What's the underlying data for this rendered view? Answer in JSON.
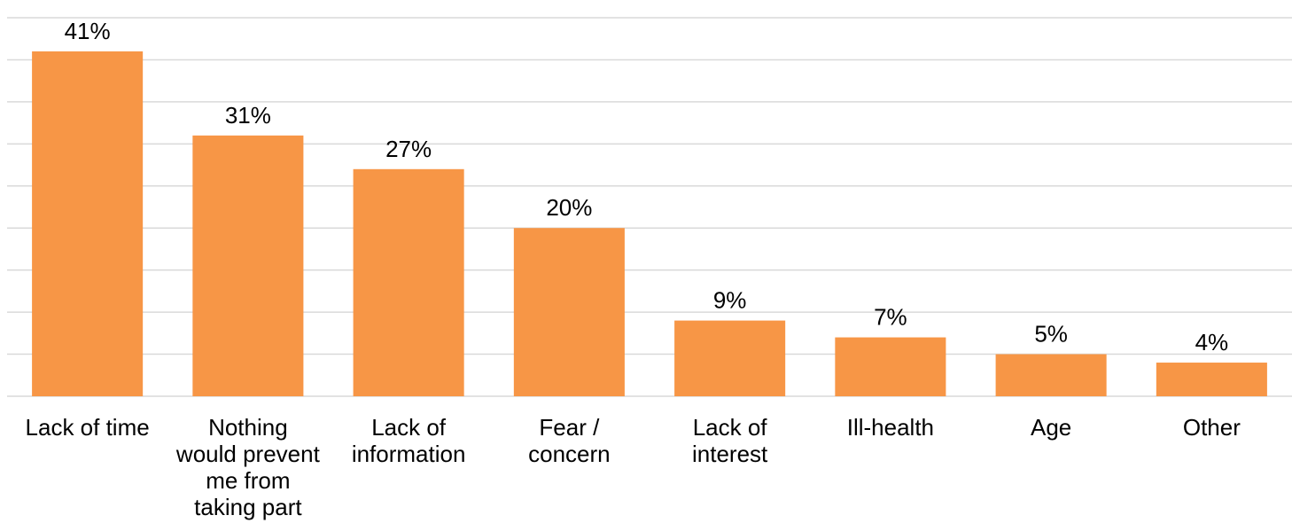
{
  "chart_data": {
    "type": "bar",
    "categories": [
      "Lack of time",
      "Nothing would prevent me from taking part",
      "Lack of information",
      "Fear / concern",
      "Lack of interest",
      "Ill-health",
      "Age",
      "Other"
    ],
    "category_lines": [
      [
        "Lack of time"
      ],
      [
        "Nothing",
        "would prevent",
        "me from",
        "taking part"
      ],
      [
        "Lack of",
        "information"
      ],
      [
        "Fear /",
        "concern"
      ],
      [
        "Lack of",
        "interest"
      ],
      [
        "Ill-health"
      ],
      [
        "Age"
      ],
      [
        "Other"
      ]
    ],
    "values": [
      41,
      31,
      27,
      20,
      9,
      7,
      5,
      4
    ],
    "data_labels": [
      "41%",
      "31%",
      "27%",
      "20%",
      "9%",
      "7%",
      "5%",
      "4%"
    ],
    "title": "",
    "xlabel": "",
    "ylabel": "",
    "ylim": [
      0,
      45
    ],
    "y_axis_visible": false,
    "grid": true,
    "legend": "none",
    "bar_color": "#f79646",
    "grid_color": "#d9d9d9"
  }
}
